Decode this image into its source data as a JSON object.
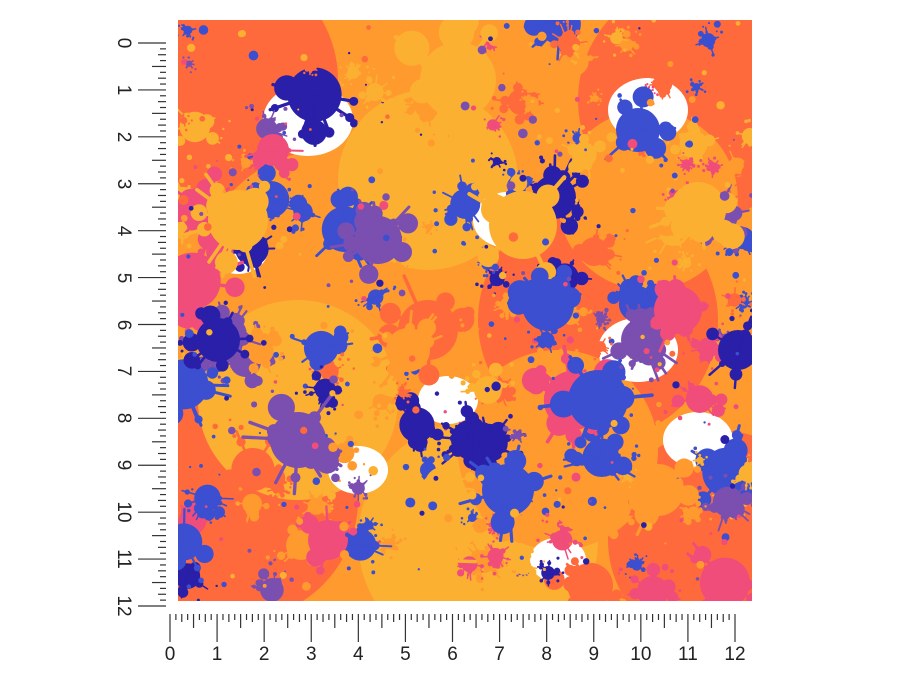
{
  "product": {
    "pattern_name": "paint-splatter",
    "colors": [
      "#ff9a2e",
      "#ff6a3d",
      "#fbb032",
      "#3b4fd0",
      "#7a4fb0",
      "#f04d7a",
      "#ffffff",
      "#2a1fa8"
    ]
  },
  "rulers": {
    "unit": "inch",
    "vertical": {
      "labels": [
        "0",
        "1",
        "2",
        "3",
        "4",
        "5",
        "6",
        "7",
        "8",
        "9",
        "10",
        "11",
        "12"
      ]
    },
    "horizontal": {
      "labels": [
        "0",
        "1",
        "2",
        "3",
        "4",
        "5",
        "6",
        "7",
        "8",
        "9",
        "10",
        "11",
        "12"
      ]
    }
  }
}
